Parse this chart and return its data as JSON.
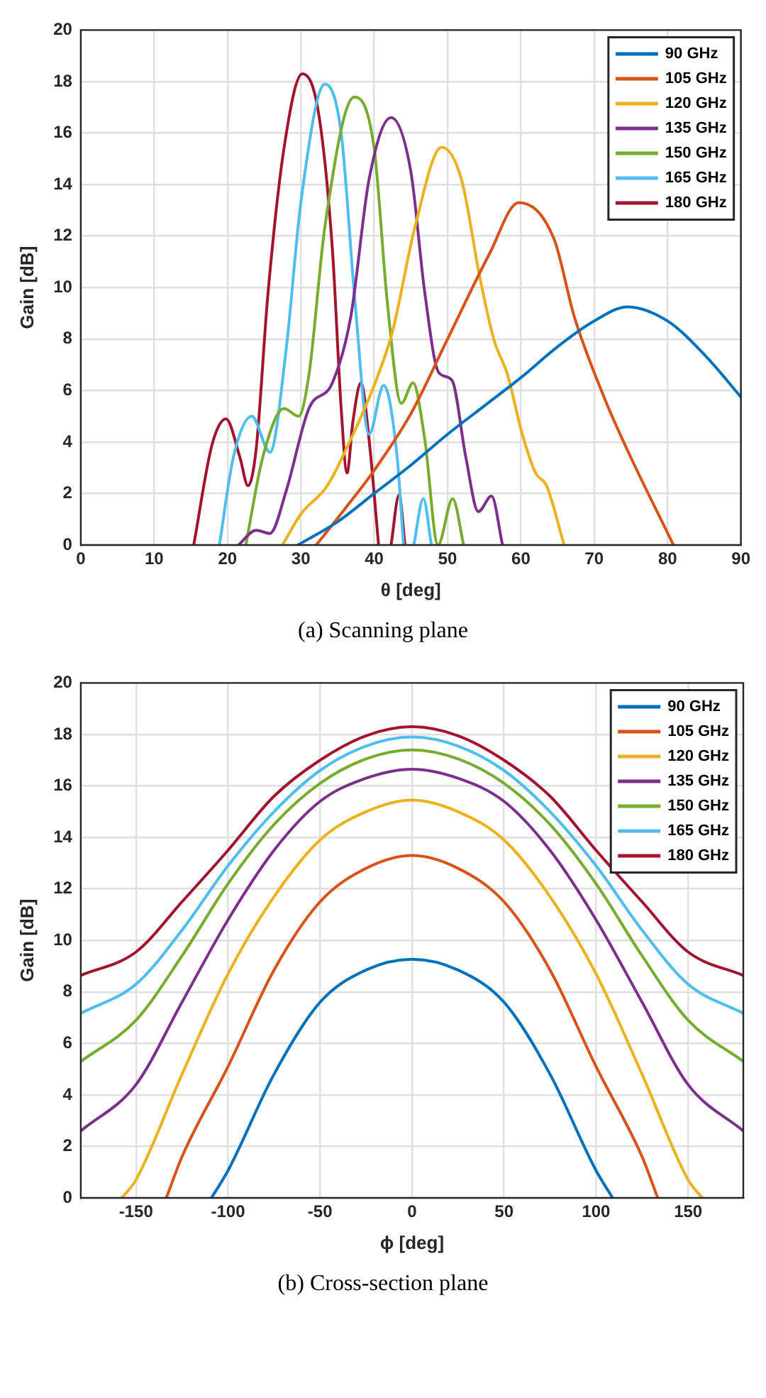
{
  "chart_data": [
    {
      "type": "line",
      "xlabel": "θ [deg]",
      "ylabel": "Gain [dB]",
      "xlim": [
        0,
        90
      ],
      "ylim": [
        0,
        20
      ],
      "xticks": [
        0,
        10,
        20,
        30,
        40,
        50,
        60,
        70,
        80,
        90
      ],
      "yticks": [
        0,
        2,
        4,
        6,
        8,
        10,
        12,
        14,
        16,
        18,
        20
      ],
      "grid": true,
      "legend": "top right",
      "line_style": "solid",
      "marker": "none",
      "annotations": [
        "(a) Scanning plane"
      ],
      "series": [
        {
          "name": "90 GHz",
          "color": "#0072bd",
          "x": [
            29.6,
            35,
            40,
            45,
            50,
            55,
            60,
            65,
            70,
            74.5,
            80,
            85,
            90
          ],
          "values": [
            0,
            0.9,
            2,
            3.1,
            4.3,
            5.4,
            6.5,
            7.7,
            8.7,
            9.25,
            8.7,
            7.4,
            5.75
          ]
        },
        {
          "name": "105 GHz",
          "color": "#d95319",
          "x": [
            32.1,
            36,
            40,
            45,
            50,
            55.7,
            59.7,
            64.5,
            67.3,
            71.4,
            74.5,
            80.8
          ],
          "values": [
            0,
            1.4,
            2.9,
            5.1,
            8,
            11.3,
            13.3,
            11.9,
            8.85,
            5.7,
            3.7,
            0
          ]
        },
        {
          "name": "120 GHz",
          "color": "#edb120",
          "x": [
            27.5,
            30,
            33.6,
            36.8,
            40,
            42.5,
            45.6,
            49.2,
            51.9,
            54.4,
            56.3,
            58.2,
            60.1,
            62,
            63.5,
            65.9
          ],
          "values": [
            0,
            1.2,
            2.3,
            4.1,
            6.2,
            8.3,
            12.4,
            15.45,
            14.2,
            10.4,
            8,
            6.6,
            4.4,
            2.8,
            2.3,
            0
          ]
        },
        {
          "name": "135 GHz",
          "color": "#7e2f8e",
          "x": [
            21.5,
            23.9,
            25.8,
            28,
            31.1,
            34.3,
            36.8,
            39.3,
            42.3,
            45,
            46.9,
            48.8,
            50.6,
            52.5,
            54.2,
            56,
            57.5
          ],
          "values": [
            0,
            0.57,
            0.45,
            2.1,
            5.3,
            6.3,
            8.85,
            14.2,
            16.6,
            14.5,
            9.8,
            6.7,
            6.4,
            3.4,
            1.3,
            1.9,
            0
          ]
        },
        {
          "name": "150 GHz",
          "color": "#77ac30",
          "x": [
            22.5,
            24.8,
            27.7,
            29.7,
            31.1,
            33.3,
            37.3,
            40,
            41.8,
            43.7,
            45.3,
            46.9,
            48.7,
            50.7,
            52.2
          ],
          "values": [
            0,
            3.4,
            5.3,
            5,
            6.6,
            12.4,
            17.4,
            15.4,
            9.4,
            5.5,
            6.3,
            4.1,
            0,
            1.8,
            0
          ]
        },
        {
          "name": "165 GHz",
          "color": "#4dbeee",
          "x": [
            18.9,
            20.8,
            23.3,
            25.8,
            28,
            30,
            33.3,
            35.5,
            37.4,
            39.3,
            41.3,
            43.1,
            44,
            44.7,
            45.4,
            46.7,
            47.8
          ],
          "values": [
            0,
            3.4,
            5,
            3.6,
            7.6,
            13.3,
            17.9,
            16,
            9.4,
            4.3,
            6.2,
            3.5,
            0,
            null,
            0,
            1.8,
            0
          ]
        },
        {
          "name": "180 GHz",
          "color": "#a2142f",
          "x": [
            15.4,
            17.9,
            19.8,
            21.7,
            22.8,
            23.9,
            25.5,
            27.7,
            30.2,
            32.4,
            34.3,
            35.5,
            36.3,
            37.1,
            38.2,
            39.3,
            40.6,
            41.5,
            42.3,
            43.4,
            44.2
          ],
          "values": [
            0,
            3.9,
            4.9,
            3.4,
            2.3,
            3.7,
            9.7,
            15.4,
            18.3,
            16.8,
            11.5,
            5.3,
            2.8,
            4.8,
            6.3,
            4.1,
            0,
            null,
            0,
            1.95,
            0
          ]
        }
      ]
    },
    {
      "type": "line",
      "xlabel": "ϕ [deg]",
      "ylabel": "Gain [dB]",
      "xlim": [
        -180,
        180
      ],
      "ylim": [
        0,
        20
      ],
      "xticks": [
        -150,
        -100,
        -50,
        0,
        50,
        100,
        150
      ],
      "yticks": [
        0,
        2,
        4,
        6,
        8,
        10,
        12,
        14,
        16,
        18,
        20
      ],
      "grid": true,
      "legend": "top right",
      "line_style": "solid",
      "marker": "none",
      "annotations": [
        "(b) Cross-section plane"
      ],
      "series": [
        {
          "name": "90 GHz",
          "color": "#0072bd",
          "x": [
            -109,
            -100,
            -75,
            -50,
            -25,
            0,
            25,
            50,
            75,
            100,
            109
          ],
          "values": [
            0,
            1.06,
            4.8,
            7.6,
            8.85,
            9.27,
            8.85,
            7.6,
            4.8,
            1.06,
            0
          ]
        },
        {
          "name": "105 GHz",
          "color": "#d95319",
          "x": [
            -133.5,
            -125,
            -100,
            -75,
            -50,
            -25,
            0,
            25,
            50,
            75,
            100,
            125,
            133.5
          ],
          "values": [
            0,
            1.6,
            5.1,
            8.85,
            11.5,
            12.8,
            13.3,
            12.8,
            11.5,
            8.85,
            5.1,
            1.6,
            0
          ]
        },
        {
          "name": "120 GHz",
          "color": "#edb120",
          "x": [
            -157.7,
            -150,
            -125,
            -100,
            -75,
            -50,
            -25,
            0,
            25,
            50,
            75,
            100,
            125,
            150,
            157.7
          ],
          "values": [
            0,
            0.7,
            4.8,
            8.7,
            11.7,
            13.9,
            15,
            15.45,
            15,
            13.9,
            11.7,
            8.7,
            4.8,
            0.7,
            0
          ]
        },
        {
          "name": "135 GHz",
          "color": "#7e2f8e",
          "x": [
            -180,
            -150,
            -125,
            -100,
            -75,
            -50,
            -25,
            0,
            25,
            50,
            75,
            100,
            125,
            150,
            180
          ],
          "values": [
            2.6,
            4.4,
            7.6,
            10.8,
            13.5,
            15.4,
            16.3,
            16.65,
            16.3,
            15.4,
            13.5,
            10.8,
            7.6,
            4.4,
            2.6
          ]
        },
        {
          "name": "150 GHz",
          "color": "#77ac30",
          "x": [
            -180,
            -150,
            -125,
            -100,
            -75,
            -50,
            -25,
            0,
            25,
            50,
            75,
            100,
            125,
            150,
            180
          ],
          "values": [
            5.3,
            6.9,
            9.4,
            12.2,
            14.5,
            16.1,
            17.05,
            17.4,
            17.05,
            16.1,
            14.5,
            12.2,
            9.4,
            6.9,
            5.3
          ]
        },
        {
          "name": "165 GHz",
          "color": "#4dbeee",
          "x": [
            -180,
            -150,
            -125,
            -100,
            -75,
            -50,
            -25,
            0,
            25,
            50,
            75,
            100,
            125,
            150,
            180
          ],
          "values": [
            7.17,
            8.3,
            10.4,
            12.9,
            15,
            16.6,
            17.55,
            17.9,
            17.55,
            16.6,
            15,
            12.9,
            10.4,
            8.3,
            7.17
          ]
        },
        {
          "name": "180 GHz",
          "color": "#a2142f",
          "x": [
            -180,
            -150,
            -125,
            -100,
            -75,
            -50,
            -25,
            0,
            25,
            50,
            75,
            100,
            125,
            150,
            180
          ],
          "values": [
            8.64,
            9.55,
            11.5,
            13.5,
            15.6,
            17,
            17.95,
            18.3,
            17.95,
            17,
            15.6,
            13.5,
            11.5,
            9.55,
            8.64
          ]
        }
      ]
    }
  ]
}
